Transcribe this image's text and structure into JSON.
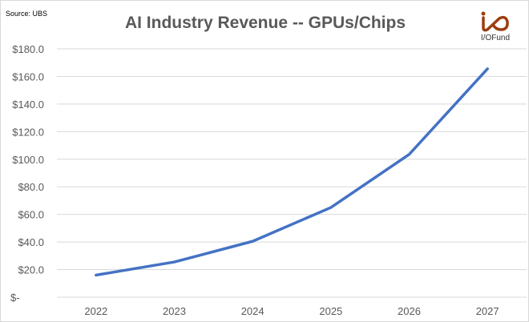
{
  "source": "Source: UBS",
  "logo_text": "I/OFund",
  "chart_data": {
    "type": "line",
    "title": "AI Industry Revenue -- GPUs/Chips",
    "categories": [
      "2022",
      "2023",
      "2024",
      "2025",
      "2026",
      "2027"
    ],
    "series": [
      {
        "values": [
          16,
          25.5,
          40.5,
          65,
          103.5,
          165.5
        ],
        "color": "#4472C4"
      }
    ],
    "ylim": [
      0,
      180
    ],
    "yticks": [
      0,
      20,
      40,
      60,
      80,
      100,
      120,
      140,
      160,
      180
    ],
    "ytick_labels": [
      "$-",
      "$20.0",
      "$40.0",
      "$60.0",
      "$80.0",
      "$100.0",
      "$120.0",
      "$140.0",
      "$160.0",
      "$180.0"
    ],
    "grid": true,
    "xlabel": "",
    "ylabel": ""
  }
}
